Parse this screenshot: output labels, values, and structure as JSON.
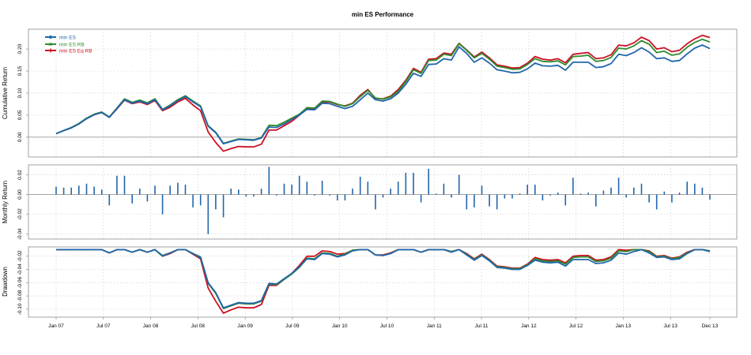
{
  "chart_data": {
    "type": "line",
    "title": "min ES Performance",
    "x_ticks": [
      "Jan 07",
      "Jul 07",
      "Jan 08",
      "Jul 08",
      "Jan 09",
      "Jul 09",
      "Jan 10",
      "Jul 10",
      "Jan 11",
      "Jul 11",
      "Jan 12",
      "Jul 12",
      "Jan 13",
      "Jul 13",
      "Dec 13"
    ],
    "colors": {
      "min_es": "#2166ac",
      "min_es_rb": "#2e8b2e",
      "min_es_eq_rb": "#cc1122",
      "bars": "#2166ac"
    },
    "legend": [
      {
        "name": "min ES",
        "color": "#2166ac"
      },
      {
        "name": "min ES RB",
        "color": "#2e8b2e"
      },
      {
        "name": "min ES Eq RB",
        "color": "#cc1122"
      }
    ],
    "panels": [
      {
        "id": "cumulative",
        "ylabel": "Cumulative Return",
        "ylim": [
          -0.045,
          0.245
        ],
        "yticks": [
          0.0,
          0.05,
          0.1,
          0.15,
          0.2
        ],
        "ytick_labels": [
          "0.00",
          "0.05",
          "0.10",
          "0.15",
          "0.20"
        ],
        "series": [
          {
            "name": "min ES",
            "values": [
              0.008,
              0.015,
              0.021,
              0.03,
              0.042,
              0.051,
              0.056,
              0.045,
              0.065,
              0.085,
              0.077,
              0.082,
              0.076,
              0.085,
              0.062,
              0.071,
              0.083,
              0.092,
              0.08,
              0.069,
              0.025,
              0.01,
              -0.015,
              -0.01,
              -0.005,
              -0.006,
              -0.007,
              -0.002,
              0.023,
              0.022,
              0.03,
              0.04,
              0.05,
              0.063,
              0.062,
              0.077,
              0.076,
              0.07,
              0.065,
              0.07,
              0.085,
              0.1,
              0.085,
              0.082,
              0.087,
              0.1,
              0.12,
              0.145,
              0.138,
              0.165,
              0.166,
              0.178,
              0.175,
              0.205,
              0.19,
              0.17,
              0.18,
              0.168,
              0.153,
              0.15,
              0.146,
              0.147,
              0.155,
              0.168,
              0.162,
              0.161,
              0.163,
              0.152,
              0.17,
              0.17,
              0.17,
              0.158,
              0.16,
              0.167,
              0.188,
              0.185,
              0.192,
              0.203,
              0.193,
              0.178,
              0.18,
              0.172,
              0.174,
              0.189,
              0.202,
              0.209,
              0.201
            ]
          },
          {
            "name": "min ES RB",
            "values": [
              0.008,
              0.015,
              0.022,
              0.031,
              0.043,
              0.052,
              0.057,
              0.046,
              0.066,
              0.087,
              0.079,
              0.084,
              0.078,
              0.087,
              0.063,
              0.073,
              0.085,
              0.094,
              0.082,
              0.071,
              0.026,
              0.011,
              -0.014,
              -0.009,
              -0.004,
              -0.005,
              -0.006,
              -0.001,
              0.027,
              0.026,
              0.034,
              0.043,
              0.052,
              0.067,
              0.066,
              0.082,
              0.081,
              0.075,
              0.07,
              0.076,
              0.092,
              0.106,
              0.089,
              0.086,
              0.091,
              0.104,
              0.126,
              0.153,
              0.145,
              0.174,
              0.175,
              0.188,
              0.185,
              0.212,
              0.197,
              0.18,
              0.19,
              0.177,
              0.161,
              0.158,
              0.154,
              0.155,
              0.165,
              0.178,
              0.172,
              0.171,
              0.173,
              0.164,
              0.183,
              0.184,
              0.186,
              0.172,
              0.174,
              0.181,
              0.202,
              0.2,
              0.207,
              0.219,
              0.211,
              0.192,
              0.195,
              0.186,
              0.189,
              0.204,
              0.215,
              0.222,
              0.216
            ]
          },
          {
            "name": "min ES Eq RB",
            "values": [
              0.008,
              0.015,
              0.021,
              0.03,
              0.042,
              0.051,
              0.056,
              0.045,
              0.064,
              0.084,
              0.076,
              0.08,
              0.074,
              0.083,
              0.06,
              0.068,
              0.08,
              0.088,
              0.073,
              0.06,
              0.012,
              -0.012,
              -0.032,
              -0.026,
              -0.021,
              -0.022,
              -0.022,
              -0.016,
              0.016,
              0.016,
              0.026,
              0.036,
              0.05,
              0.065,
              0.065,
              0.079,
              0.08,
              0.074,
              0.071,
              0.077,
              0.095,
              0.108,
              0.088,
              0.087,
              0.093,
              0.108,
              0.129,
              0.156,
              0.147,
              0.177,
              0.178,
              0.191,
              0.188,
              0.213,
              0.198,
              0.182,
              0.193,
              0.18,
              0.164,
              0.161,
              0.157,
              0.158,
              0.168,
              0.183,
              0.177,
              0.175,
              0.178,
              0.169,
              0.188,
              0.19,
              0.192,
              0.178,
              0.18,
              0.187,
              0.209,
              0.207,
              0.214,
              0.227,
              0.219,
              0.2,
              0.203,
              0.194,
              0.197,
              0.212,
              0.223,
              0.231,
              0.226
            ]
          }
        ]
      },
      {
        "id": "monthly",
        "ylabel": "Monthly Return",
        "ylim": [
          -0.045,
          0.03
        ],
        "yticks": [
          -0.04,
          -0.02,
          0.0,
          0.02
        ],
        "ytick_labels": [
          "-0.04",
          "-0.02",
          "0.00",
          "0.02"
        ],
        "bars": [
          0.008,
          0.007,
          0.007,
          0.009,
          0.011,
          0.008,
          0.005,
          -0.011,
          0.019,
          0.019,
          -0.009,
          0.006,
          -0.007,
          0.009,
          -0.02,
          0.009,
          0.012,
          0.01,
          -0.013,
          -0.011,
          -0.04,
          -0.015,
          -0.023,
          0.006,
          0.005,
          -0.002,
          -0.002,
          0.006,
          0.028,
          -0.001,
          0.011,
          0.01,
          0.019,
          0.013,
          -0.001,
          0.014,
          -0.001,
          -0.006,
          -0.006,
          0.006,
          0.018,
          0.013,
          -0.015,
          -0.003,
          0.006,
          0.013,
          0.022,
          0.022,
          -0.008,
          0.026,
          0.001,
          0.011,
          -0.003,
          0.02,
          -0.015,
          -0.013,
          0.009,
          -0.012,
          -0.015,
          -0.004,
          -0.004,
          0.001,
          0.01,
          0.01,
          -0.006,
          -0.001,
          0.002,
          -0.011,
          0.017,
          0.001,
          0.002,
          -0.012,
          0.004,
          0.007,
          0.017,
          -0.003,
          0.007,
          0.011,
          -0.008,
          -0.015,
          0.003,
          -0.008,
          0.002,
          0.013,
          0.011,
          0.007,
          -0.005
        ]
      },
      {
        "id": "drawdown",
        "ylabel": "Drawdown",
        "ylim": [
          -0.112,
          -0.006
        ],
        "yticks": [
          -0.02,
          -0.04,
          -0.06,
          -0.08,
          -0.1
        ],
        "ytick_labels": [
          "-0.02",
          "-0.04",
          "-0.06",
          "-0.08",
          "-0.10"
        ],
        "series": [
          {
            "name": "min ES",
            "values": [
              -0.01,
              -0.01,
              -0.01,
              -0.01,
              -0.01,
              -0.01,
              -0.01,
              -0.015,
              -0.01,
              -0.01,
              -0.014,
              -0.01,
              -0.014,
              -0.01,
              -0.019,
              -0.015,
              -0.01,
              -0.01,
              -0.016,
              -0.022,
              -0.06,
              -0.075,
              -0.098,
              -0.094,
              -0.09,
              -0.091,
              -0.091,
              -0.087,
              -0.061,
              -0.062,
              -0.054,
              -0.046,
              -0.036,
              -0.024,
              -0.025,
              -0.016,
              -0.017,
              -0.021,
              -0.018,
              -0.012,
              -0.01,
              -0.01,
              -0.018,
              -0.019,
              -0.016,
              -0.01,
              -0.01,
              -0.01,
              -0.014,
              -0.01,
              -0.01,
              -0.01,
              -0.014,
              -0.01,
              -0.018,
              -0.026,
              -0.019,
              -0.027,
              -0.037,
              -0.038,
              -0.04,
              -0.04,
              -0.034,
              -0.026,
              -0.029,
              -0.03,
              -0.029,
              -0.035,
              -0.025,
              -0.025,
              -0.025,
              -0.031,
              -0.03,
              -0.026,
              -0.015,
              -0.017,
              -0.013,
              -0.01,
              -0.015,
              -0.022,
              -0.021,
              -0.025,
              -0.024,
              -0.016,
              -0.01,
              -0.01,
              -0.013
            ]
          },
          {
            "name": "min ES RB",
            "values": [
              -0.01,
              -0.01,
              -0.01,
              -0.01,
              -0.01,
              -0.01,
              -0.01,
              -0.015,
              -0.01,
              -0.01,
              -0.014,
              -0.01,
              -0.014,
              -0.01,
              -0.02,
              -0.015,
              -0.01,
              -0.01,
              -0.016,
              -0.021,
              -0.061,
              -0.076,
              -0.099,
              -0.095,
              -0.091,
              -0.092,
              -0.092,
              -0.088,
              -0.062,
              -0.063,
              -0.055,
              -0.047,
              -0.037,
              -0.023,
              -0.024,
              -0.015,
              -0.016,
              -0.02,
              -0.017,
              -0.011,
              -0.01,
              -0.01,
              -0.018,
              -0.019,
              -0.016,
              -0.01,
              -0.01,
              -0.01,
              -0.014,
              -0.01,
              -0.01,
              -0.01,
              -0.013,
              -0.01,
              -0.017,
              -0.025,
              -0.018,
              -0.026,
              -0.036,
              -0.037,
              -0.039,
              -0.039,
              -0.033,
              -0.024,
              -0.027,
              -0.028,
              -0.027,
              -0.032,
              -0.022,
              -0.021,
              -0.021,
              -0.028,
              -0.027,
              -0.023,
              -0.012,
              -0.013,
              -0.01,
              -0.01,
              -0.013,
              -0.021,
              -0.02,
              -0.024,
              -0.022,
              -0.015,
              -0.01,
              -0.01,
              -0.012
            ]
          },
          {
            "name": "min ES Eq RB",
            "values": [
              -0.01,
              -0.01,
              -0.01,
              -0.01,
              -0.01,
              -0.01,
              -0.01,
              -0.015,
              -0.01,
              -0.01,
              -0.014,
              -0.01,
              -0.014,
              -0.01,
              -0.02,
              -0.016,
              -0.01,
              -0.01,
              -0.017,
              -0.024,
              -0.068,
              -0.088,
              -0.106,
              -0.101,
              -0.097,
              -0.098,
              -0.098,
              -0.093,
              -0.064,
              -0.064,
              -0.055,
              -0.046,
              -0.034,
              -0.02,
              -0.02,
              -0.012,
              -0.013,
              -0.017,
              -0.016,
              -0.011,
              -0.01,
              -0.01,
              -0.018,
              -0.018,
              -0.015,
              -0.01,
              -0.01,
              -0.01,
              -0.014,
              -0.01,
              -0.01,
              -0.01,
              -0.013,
              -0.01,
              -0.016,
              -0.024,
              -0.017,
              -0.025,
              -0.035,
              -0.036,
              -0.038,
              -0.038,
              -0.032,
              -0.022,
              -0.025,
              -0.026,
              -0.025,
              -0.03,
              -0.02,
              -0.019,
              -0.019,
              -0.026,
              -0.025,
              -0.021,
              -0.01,
              -0.011,
              -0.01,
              -0.01,
              -0.012,
              -0.02,
              -0.019,
              -0.023,
              -0.021,
              -0.014,
              -0.01,
              -0.01,
              -0.012
            ]
          }
        ]
      }
    ]
  }
}
